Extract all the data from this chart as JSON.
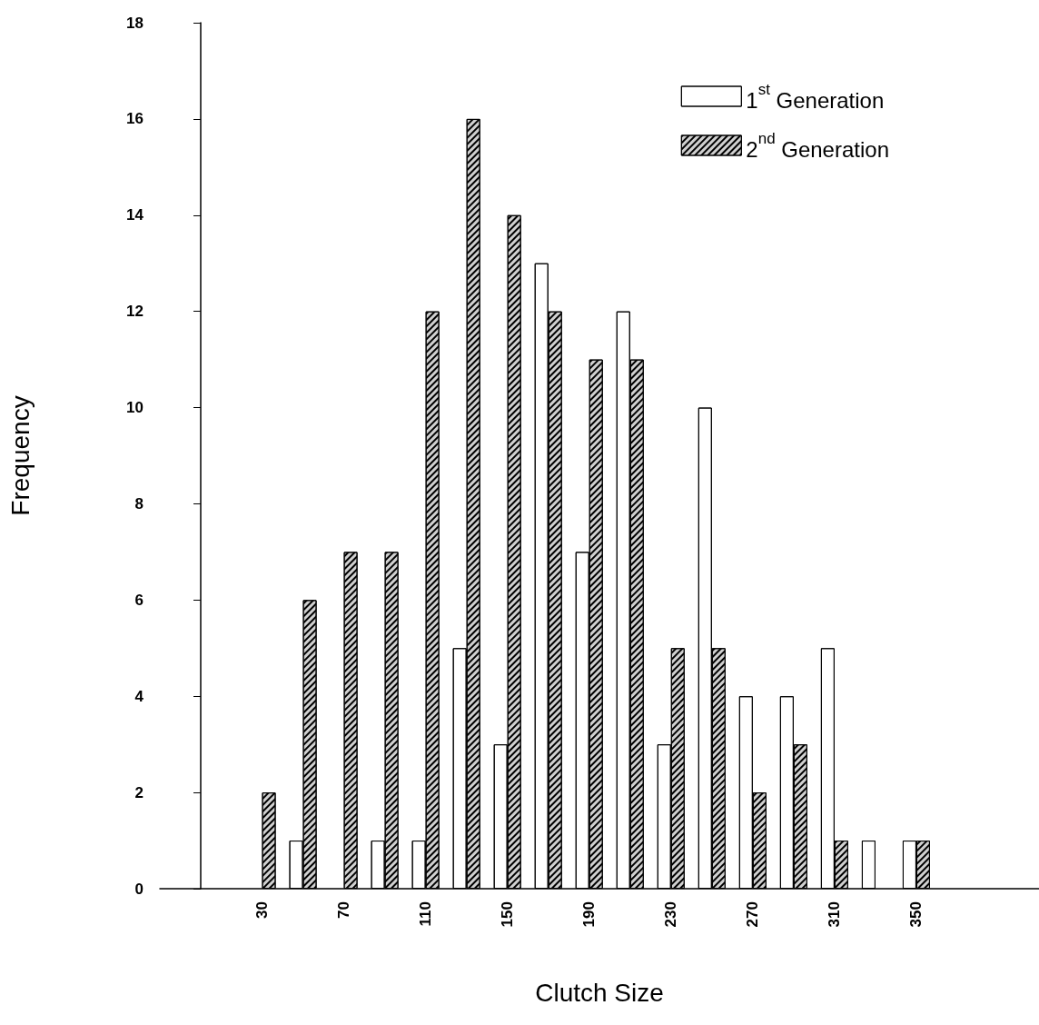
{
  "chart_data": {
    "type": "bar",
    "xlabel": "Clutch Size",
    "ylabel": "Frequency",
    "x": [
      30,
      50,
      70,
      90,
      110,
      130,
      150,
      170,
      190,
      210,
      230,
      250,
      270,
      290,
      310,
      330,
      350
    ],
    "series": [
      {
        "name": "1$^{st}$ Generation",
        "color": "#ffffff",
        "values": [
          0,
          1,
          0,
          1,
          1,
          5,
          3,
          13,
          7,
          12,
          3,
          10,
          4,
          4,
          5,
          1,
          1
        ]
      },
      {
        "name": "2$^{nd}$ Generation",
        "color": "#d0d0d0",
        "values": [
          2,
          6,
          7,
          7,
          12,
          16,
          14,
          12,
          11,
          11,
          5,
          5,
          2,
          3,
          1,
          0,
          1
        ]
      }
    ],
    "xlim": [
      -20,
      410
    ],
    "xticks": [
      30,
      70,
      110,
      150,
      190,
      230,
      270,
      310,
      350
    ],
    "ylim": [
      0,
      18
    ],
    "yticks": [
      0,
      2,
      4,
      6,
      8,
      10,
      12,
      14,
      16,
      18
    ],
    "grid": false,
    "legend": "top right"
  }
}
